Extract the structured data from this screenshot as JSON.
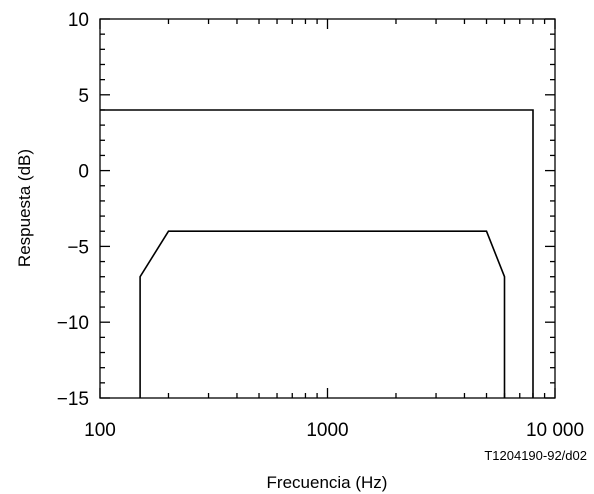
{
  "chart_data": {
    "type": "line",
    "xlabel": "Frecuencia (Hz)",
    "ylabel": "Respuesta (dB)",
    "x_scale": "log",
    "xlim": [
      100,
      10000
    ],
    "ylim": [
      -15,
      10
    ],
    "x_ticks": [
      100,
      1000,
      10000
    ],
    "x_tick_labels": [
      "100",
      "1000",
      "10 000"
    ],
    "y_ticks": [
      10,
      5,
      0,
      -5,
      -10,
      -15
    ],
    "y_tick_labels": [
      "10",
      "5",
      "0",
      "−5",
      "−10",
      "−15"
    ],
    "y_minor_step": 1,
    "grid": false,
    "series": [
      {
        "x": [
          100,
          8000,
          8000
        ],
        "y": [
          4,
          4,
          -15
        ]
      },
      {
        "x": [
          150,
          150,
          200,
          5000,
          6000,
          6000
        ],
        "y": [
          -15,
          -7,
          -4,
          -4,
          -7,
          -15
        ]
      }
    ],
    "annotations": [
      {
        "text": "T1204190-92/d02"
      }
    ]
  }
}
